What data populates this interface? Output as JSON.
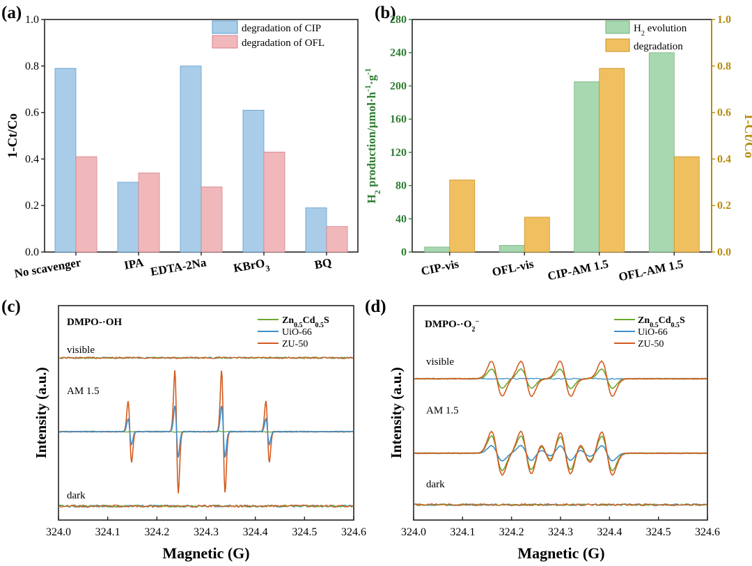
{
  "colors": {
    "cip_bar": "#a9cde8",
    "cip_edge": "#5b9bd0",
    "ofl_bar": "#f0b8bb",
    "ofl_edge": "#d98088",
    "h2_bar": "#a8d8b0",
    "h2_edge": "#72b27e",
    "deg_bar": "#f0c060",
    "deg_edge": "#c99425",
    "green_axis": "#2e7d32",
    "gold_axis": "#b58c0c",
    "epr_zncds": "#6aa82e",
    "epr_uio": "#3d8ec9",
    "epr_zu": "#d45a1e"
  },
  "panels": {
    "a": {
      "label": "(a)"
    },
    "b": {
      "label": "(b)"
    },
    "c": {
      "label": "(c)"
    },
    "d": {
      "label": "(d)"
    }
  },
  "chart_data": [
    {
      "panel": "a",
      "type": "bar",
      "categories": [
        "No scavenger",
        "IPA",
        "EDTA-2Na",
        "KBrO3",
        "BQ"
      ],
      "category_labels": [
        "No scavenger",
        "IPA",
        "EDTA-2Na",
        "KBrO",
        "BQ"
      ],
      "category_subscripts": [
        "",
        "",
        "",
        "3",
        ""
      ],
      "series": [
        {
          "name": "degradation of CIP",
          "values": [
            0.79,
            0.3,
            0.8,
            0.61,
            0.19
          ]
        },
        {
          "name": "degradation of OFL",
          "values": [
            0.41,
            0.34,
            0.28,
            0.43,
            0.11
          ]
        }
      ],
      "ylabel": "1-Ct/Co",
      "ylim": [
        0,
        1.0
      ],
      "yticks": [
        "0.0",
        "0.2",
        "0.4",
        "0.6",
        "0.8",
        "1.0"
      ],
      "legend": "top-right"
    },
    {
      "panel": "b",
      "type": "bar",
      "categories": [
        "CIP-vis",
        "OFL-vis",
        "CIP-AM 1.5",
        "OFL-AM 1.5"
      ],
      "series": [
        {
          "name": "H2 evolution",
          "axis": "left",
          "values": [
            6,
            8,
            205,
            240
          ]
        },
        {
          "name": "degradation",
          "axis": "right",
          "values": [
            0.31,
            0.15,
            0.79,
            0.41
          ]
        }
      ],
      "legend_labels": [
        {
          "main": "H",
          "sub": "2",
          "rest": " evolution"
        },
        {
          "main": "degradation",
          "sub": "",
          "rest": ""
        }
      ],
      "ylabel_left": {
        "a": "H",
        "sub": "2",
        "b": " production/μmol·h",
        "sup1": "-1",
        "c": "·g",
        "sup2": "-1"
      },
      "ylim_left": [
        0,
        280
      ],
      "yticks_left": [
        "0",
        "40",
        "80",
        "120",
        "160",
        "200",
        "240",
        "280"
      ],
      "ylabel_right": "1-Ct/Co",
      "ylim_right": [
        0,
        1.0
      ],
      "yticks_right": [
        "0.0",
        "0.2",
        "0.4",
        "0.6",
        "0.8",
        "1.0"
      ],
      "legend": "top-right"
    },
    {
      "panel": "c",
      "type": "line",
      "title": "DMPO-·OH",
      "xlabel": "Magnetic (G)",
      "ylabel": "Intensity (a.u.)",
      "xlim": [
        324.0,
        324.6
      ],
      "xticks": [
        "324.0",
        "324.1",
        "324.2",
        "324.3",
        "324.4",
        "324.5",
        "324.6"
      ],
      "traces": [
        "visible",
        "AM 1.5",
        "dark"
      ],
      "series": [
        {
          "name": "Zn0.5Cd0.5S",
          "label": {
            "a": "Zn",
            "s1": "0.5",
            "b": "Cd",
            "s2": "0.5",
            "c": "S"
          }
        },
        {
          "name": "UiO-66",
          "label": {
            "a": "UiO-66"
          }
        },
        {
          "name": "ZU-50",
          "label": {
            "a": "ZU-50"
          }
        }
      ],
      "peaks_G": [
        324.145,
        324.24,
        324.335,
        324.425
      ],
      "peak_ratios": [
        1,
        2,
        2,
        1
      ],
      "amplitude_AM15": {
        "ZU-50": 1.0,
        "UiO-66": 0.42,
        "Zn0.5Cd0.5S": 0.0
      },
      "legend": "top-right"
    },
    {
      "panel": "d",
      "type": "line",
      "title": {
        "a": "DMPO-·O",
        "sub": "2",
        "sup": "−"
      },
      "xlabel": "Magnetic (G)",
      "ylabel": "Intensity (a.u.)",
      "xlim": [
        324.0,
        324.6
      ],
      "xticks": [
        "324.0",
        "324.1",
        "324.2",
        "324.3",
        "324.4",
        "324.5",
        "324.6"
      ],
      "traces": [
        "visible",
        "AM 1.5",
        "dark"
      ],
      "series": [
        {
          "name": "Zn0.5Cd0.5S",
          "label": {
            "a": "Zn",
            "s1": "0.5",
            "b": "Cd",
            "s2": "0.5",
            "c": "S"
          }
        },
        {
          "name": "UiO-66",
          "label": {
            "a": "UiO-66"
          }
        },
        {
          "name": "ZU-50",
          "label": {
            "a": "ZU-50"
          }
        }
      ],
      "peaks_G": [
        324.17,
        324.23,
        324.27,
        324.31,
        324.35,
        324.395
      ],
      "amplitude_visible": {
        "ZU-50": 1.0,
        "Zn0.5Cd0.5S": 0.55,
        "UiO-66": 0.0
      },
      "amplitude_AM15": {
        "ZU-50": 1.0,
        "Zn0.5Cd0.5S": 0.8,
        "UiO-66": 0.35
      },
      "legend": "top-right"
    }
  ]
}
